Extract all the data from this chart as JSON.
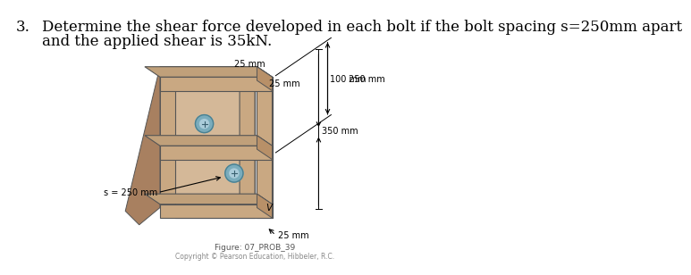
{
  "title_number": "3.",
  "title_text": "Determine the shear force developed in each bolt if the bolt spacing s=250mm apart",
  "title_text2": "and the applied shear is 35kN.",
  "figure_caption": "Figure: 07_PROB_39",
  "figure_subcaption": "Copyright © Pearson Education, Hibbeler, R.C.",
  "bg_color": "#ffffff",
  "title_fontsize": 12,
  "caption_fontsize": 6.5,
  "wood_tan_light": "#d4b898",
  "wood_tan_mid": "#c9a882",
  "wood_tan_dark": "#b89068",
  "wood_tan_top": "#c0a07a",
  "wood_shadow": "#a88060",
  "line_color": "#555555",
  "bolt_outer": "#7aacbc",
  "bolt_inner": "#aaccda",
  "bolt_ring": "#4a8090"
}
